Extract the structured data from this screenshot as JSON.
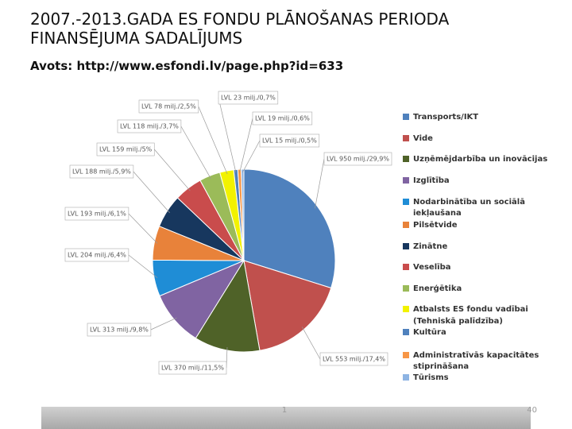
{
  "chart_data": {
    "type": "pie",
    "title": "2007.-2013.GADA ES FONDU PLĀNOŠANAS PERIODA FINANSĒJUMA SADALĪJUMS",
    "subtitle": "Avots: http://www.esfondi.lv/page.php?id=633",
    "categories": [
      "Transports/IKT",
      "Vide",
      "Uzņēmējdarbība un inovācijas",
      "Izglītība",
      "Nodarbinātība un sociālā iekļaušana",
      "Pilsētvide",
      "Zinātne",
      "Veselība",
      "Enerģētika",
      "Atbalsts ES fondu vadībai (Tehniskā palīdzība)",
      "Kultūra",
      "Administratīvās kapacitātes stiprināšana",
      "Tūrisms"
    ],
    "values": [
      950,
      553,
      370,
      313,
      204,
      193,
      188,
      159,
      118,
      78,
      23,
      19,
      15
    ],
    "value_labels": [
      "LVL 950 milj./29,9%",
      "LVL 553 milj./17,4%",
      "LVL 370 milj./11,5%",
      "LVL 313 milj./9,8%",
      "LVL 204 milj./6,4%",
      "LVL 193 milj./6,1%",
      "LVL 188 milj./5,9%",
      "LVL 159 milj./5%",
      "LVL 118 milj./3,7%",
      "LVL 78 milj./2,5%",
      "LVL 23 milj./0,7%",
      "LVL 19 milj./0,6%",
      "LVL 15 milj./0,5%"
    ],
    "colors": [
      "#4f81bd",
      "#c0504d",
      "#4f6228",
      "#8064a2",
      "#1f8dd6",
      "#e8823a",
      "#17375e",
      "#c94c4c",
      "#9bbb59",
      "#f2f200",
      "#4f81bd",
      "#f79646",
      "#8eb4e3"
    ],
    "legend": "right"
  },
  "footer": {
    "mark": "1",
    "slide_number": "40"
  }
}
